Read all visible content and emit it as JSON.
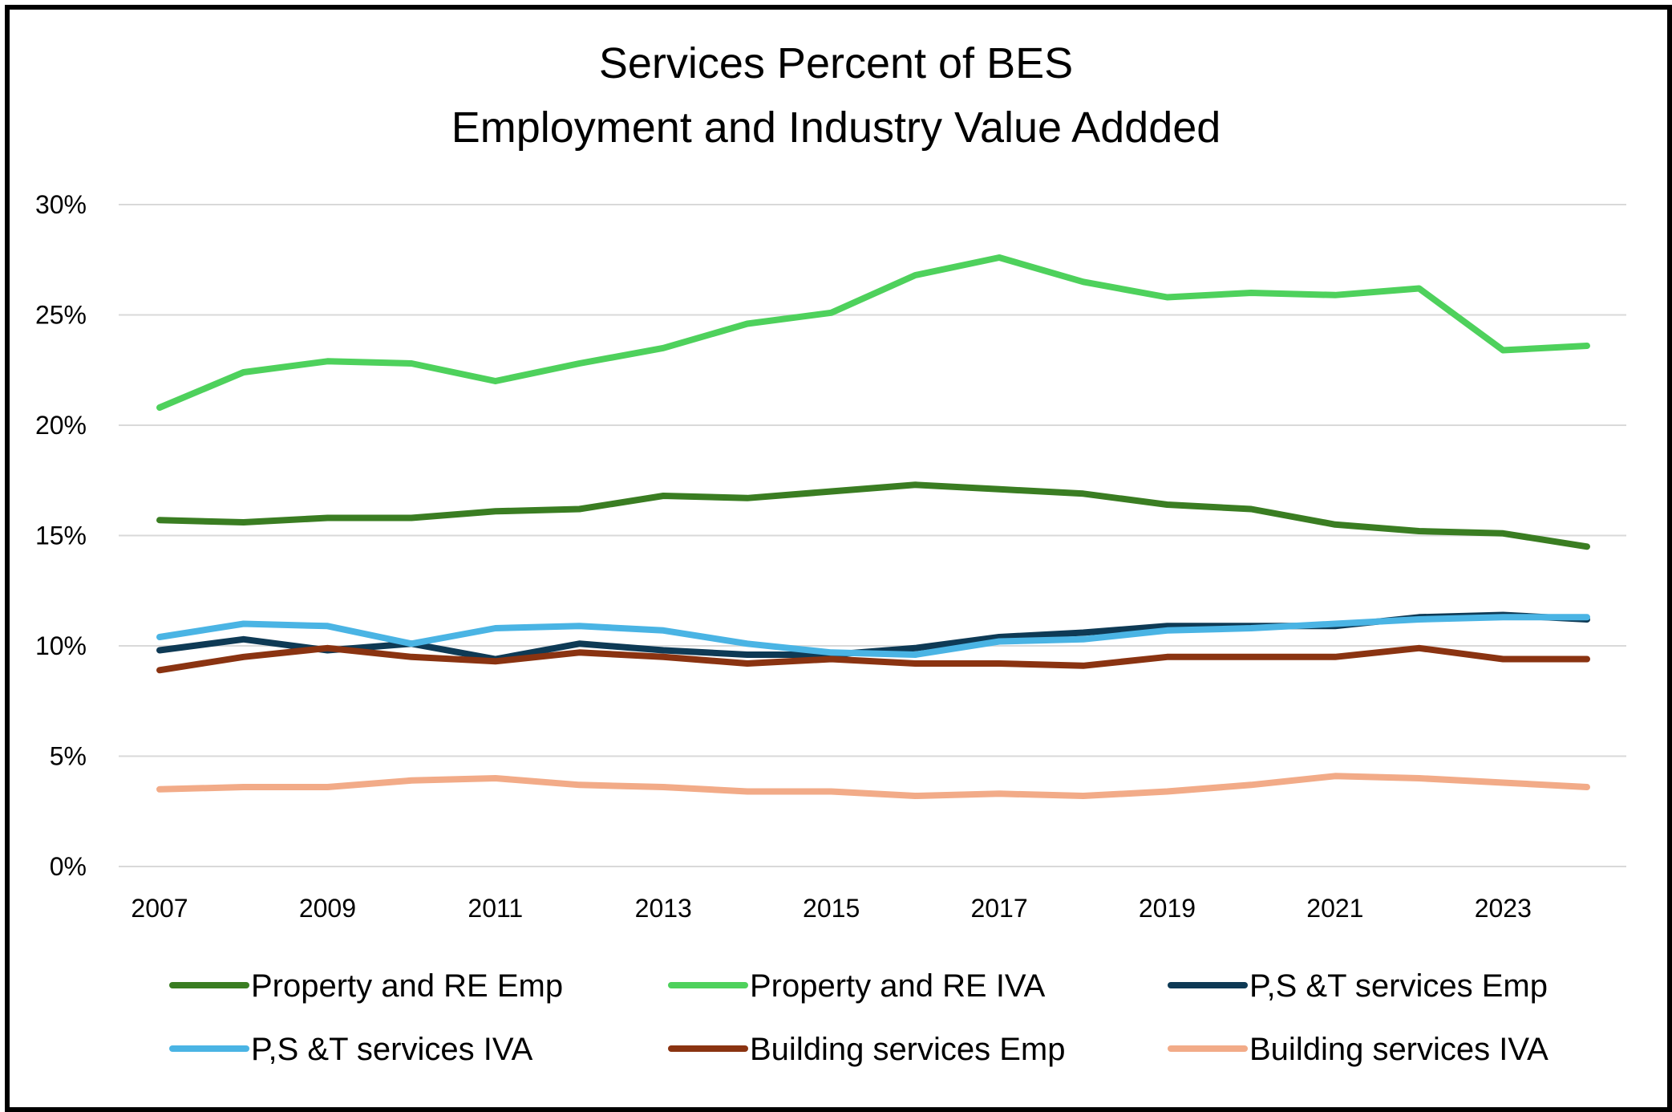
{
  "chart_data": {
    "type": "line",
    "title": [
      "Services Percent of BES",
      "Employment and Industry Value Addded"
    ],
    "xlabel": "",
    "ylabel": "",
    "ylim": [
      0,
      30
    ],
    "y_ticks": [
      "0%",
      "5%",
      "10%",
      "15%",
      "20%",
      "25%",
      "30%"
    ],
    "y_tick_values": [
      0,
      5,
      10,
      15,
      20,
      25,
      30
    ],
    "x": [
      2007,
      2008,
      2009,
      2010,
      2011,
      2012,
      2013,
      2014,
      2015,
      2016,
      2017,
      2018,
      2019,
      2020,
      2021,
      2022,
      2023,
      2024
    ],
    "x_tick_labels": [
      "2007",
      "2009",
      "2011",
      "2013",
      "2015",
      "2017",
      "2019",
      "2021",
      "2023"
    ],
    "x_tick_values": [
      2007,
      2009,
      2011,
      2013,
      2015,
      2017,
      2019,
      2021,
      2023
    ],
    "grid": true,
    "legend_position": "bottom",
    "series": [
      {
        "name": "Property and RE Emp",
        "color": "#3a7d22",
        "values": [
          15.7,
          15.6,
          15.8,
          15.8,
          16.1,
          16.2,
          16.8,
          16.7,
          17.0,
          17.3,
          17.1,
          16.9,
          16.4,
          16.2,
          15.5,
          15.2,
          15.1,
          14.5
        ]
      },
      {
        "name": "Property and RE IVA",
        "color": "#4ed15c",
        "values": [
          20.8,
          22.4,
          22.9,
          22.8,
          22.0,
          22.8,
          23.5,
          24.6,
          25.1,
          26.8,
          27.6,
          26.5,
          25.8,
          26.0,
          25.9,
          26.2,
          23.4,
          23.6
        ]
      },
      {
        "name": "P,S &T services Emp",
        "color": "#0e3a55",
        "values": [
          9.8,
          10.3,
          9.8,
          10.1,
          9.4,
          10.1,
          9.8,
          9.6,
          9.6,
          9.9,
          10.4,
          10.6,
          10.9,
          10.9,
          10.9,
          11.3,
          11.4,
          11.2
        ]
      },
      {
        "name": "P,S &T services IVA",
        "color": "#4ab4e4",
        "values": [
          10.4,
          11.0,
          10.9,
          10.1,
          10.8,
          10.9,
          10.7,
          10.1,
          9.7,
          9.6,
          10.2,
          10.3,
          10.7,
          10.8,
          11.0,
          11.2,
          11.3,
          11.3
        ]
      },
      {
        "name": "Building services Emp",
        "color": "#8a3311",
        "values": [
          8.9,
          9.5,
          9.9,
          9.5,
          9.3,
          9.7,
          9.5,
          9.2,
          9.4,
          9.2,
          9.2,
          9.1,
          9.5,
          9.5,
          9.5,
          9.9,
          9.4,
          9.4
        ]
      },
      {
        "name": "Building services IVA",
        "color": "#f2ab88",
        "values": [
          3.5,
          3.6,
          3.6,
          3.9,
          4.0,
          3.7,
          3.6,
          3.4,
          3.4,
          3.2,
          3.3,
          3.2,
          3.4,
          3.7,
          4.1,
          4.0,
          3.8,
          3.6
        ]
      }
    ]
  }
}
